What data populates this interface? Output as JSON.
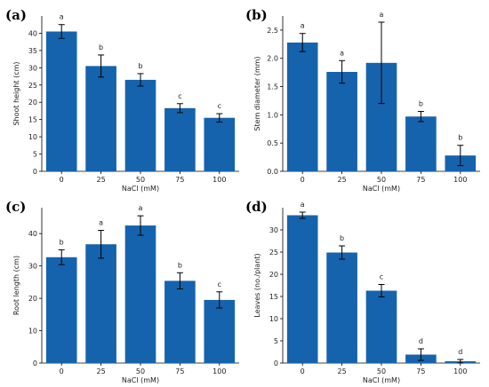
{
  "bar_color": "#1563ad",
  "chart_data": [
    {
      "type": "bar",
      "panel_label": "(a)",
      "categories": [
        "0",
        "25",
        "50",
        "75",
        "100"
      ],
      "values": [
        40.5,
        30.5,
        26.5,
        18.3,
        15.5
      ],
      "errors": [
        2.0,
        3.2,
        1.8,
        1.3,
        1.2
      ],
      "letters": [
        "a",
        "b",
        "b",
        "c",
        "c"
      ],
      "xlabel": "NaCl (mM)",
      "ylabel": "Shoot height (cm)",
      "yticks": [
        0,
        5,
        10,
        15,
        20,
        25,
        30,
        35,
        40
      ],
      "ylim": [
        0,
        45
      ]
    },
    {
      "type": "bar",
      "panel_label": "(b)",
      "categories": [
        "0",
        "25",
        "50",
        "75",
        "100"
      ],
      "values": [
        2.28,
        1.76,
        1.92,
        0.97,
        0.28
      ],
      "errors": [
        0.16,
        0.2,
        0.72,
        0.09,
        0.18
      ],
      "letters": [
        "a",
        "a",
        "a",
        "b",
        "b"
      ],
      "xlabel": "NaCl (mM)",
      "ylabel": "Stem diameter (mm)",
      "yticks": [
        "0.0",
        "0.5",
        "1.0",
        "1.5",
        "2.0",
        "2.5"
      ],
      "ylim": [
        0,
        2.75
      ]
    },
    {
      "type": "bar",
      "panel_label": "(c)",
      "categories": [
        "0",
        "25",
        "50",
        "75",
        "100"
      ],
      "values": [
        32.7,
        36.7,
        42.5,
        25.4,
        19.5
      ],
      "errors": [
        2.3,
        4.3,
        3.0,
        2.5,
        2.5
      ],
      "letters": [
        "b",
        "a",
        "a",
        "b",
        "c"
      ],
      "xlabel": "NaCl (mM)",
      "ylabel": "Root length (cm)",
      "yticks": [
        0,
        10,
        20,
        30,
        40
      ],
      "ylim": [
        0,
        48
      ]
    },
    {
      "type": "bar",
      "panel_label": "(d)",
      "categories": [
        "0",
        "25",
        "50",
        "75",
        "100"
      ],
      "values": [
        33.3,
        24.9,
        16.3,
        1.9,
        0.4
      ],
      "errors": [
        0.7,
        1.5,
        1.4,
        1.3,
        0.4
      ],
      "letters": [
        "a",
        "b",
        "c",
        "d",
        "d"
      ],
      "xlabel": "NaCl (mM)",
      "ylabel": "Leaves (no./plant)",
      "yticks": [
        0,
        5,
        10,
        15,
        20,
        25,
        30
      ],
      "ylim": [
        0,
        35
      ]
    }
  ]
}
